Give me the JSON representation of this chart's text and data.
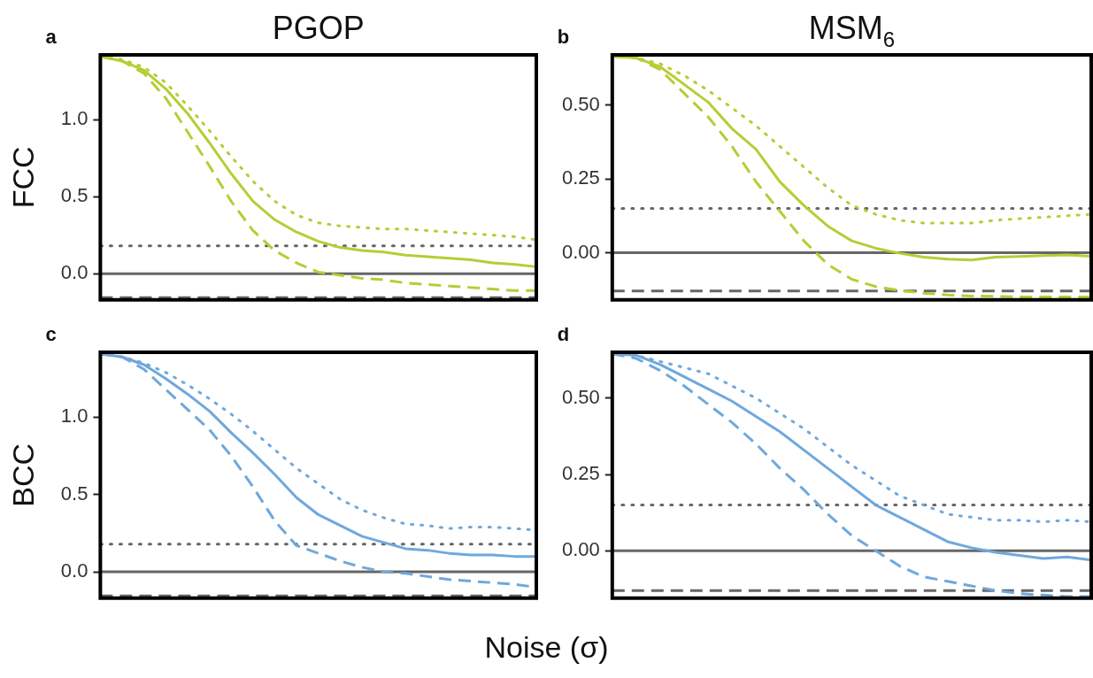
{
  "chart_data": [
    {
      "type": "line",
      "title": "PGOP",
      "ylabel": "FCC",
      "annotations": [
        "a"
      ],
      "tick_labels": "y",
      "legend": false,
      "categories": [
        null,
        null,
        null,
        null,
        null,
        null,
        null,
        null,
        null,
        null,
        null,
        null,
        null,
        null,
        null,
        null,
        null,
        null,
        null,
        null,
        null
      ],
      "ylim": [
        -0.17,
        1.42
      ],
      "yticks": [
        {
          "value": 0,
          "label": "0.0"
        },
        {
          "value": 0.5,
          "label": "0.5"
        },
        {
          "value": 1,
          "label": "1.0"
        }
      ],
      "ref_lines": [
        {
          "axis": "y",
          "value": 0,
          "color": "#666666",
          "line_style": "solid"
        },
        {
          "axis": "y",
          "value": 0.18,
          "color": "#666666",
          "line_style": "dotted"
        },
        {
          "axis": "y",
          "value": -0.155,
          "color": "#666666",
          "line_style": "dashed"
        }
      ],
      "series": [
        {
          "color": "#b8cc35",
          "line_style": "solid",
          "values": [
            1.41,
            1.38,
            1.32,
            1.2,
            1.04,
            0.85,
            0.65,
            0.47,
            0.35,
            0.27,
            0.21,
            0.17,
            0.15,
            0.14,
            0.12,
            0.11,
            0.1,
            0.09,
            0.07,
            0.06,
            0.045
          ]
        },
        {
          "color": "#b8cc35",
          "line_style": "dashed",
          "values": [
            1.41,
            1.38,
            1.3,
            1.14,
            0.92,
            0.7,
            0.47,
            0.28,
            0.15,
            0.07,
            0.01,
            -0.01,
            -0.03,
            -0.04,
            -0.06,
            -0.07,
            -0.08,
            -0.09,
            -0.1,
            -0.11,
            -0.11
          ]
        },
        {
          "color": "#b8cc35",
          "line_style": "dotted",
          "values": [
            1.41,
            1.39,
            1.34,
            1.24,
            1.09,
            0.93,
            0.76,
            0.6,
            0.47,
            0.38,
            0.33,
            0.31,
            0.3,
            0.29,
            0.29,
            0.28,
            0.27,
            0.26,
            0.25,
            0.24,
            0.22
          ]
        }
      ]
    },
    {
      "type": "line",
      "title": "MSM$_{6}$",
      "annotations": [
        "b"
      ],
      "tick_labels": "y",
      "legend": false,
      "categories": [
        null,
        null,
        null,
        null,
        null,
        null,
        null,
        null,
        null,
        null,
        null,
        null,
        null,
        null,
        null,
        null,
        null,
        null,
        null,
        null,
        null
      ],
      "ylim": [
        -0.16,
        0.67
      ],
      "yticks": [
        {
          "value": 0,
          "label": "0.00"
        },
        {
          "value": 0.25,
          "label": "0.25"
        },
        {
          "value": 0.5,
          "label": "0.50"
        }
      ],
      "ref_lines": [
        {
          "axis": "y",
          "value": 0,
          "color": "#666666",
          "line_style": "solid"
        },
        {
          "axis": "y",
          "value": 0.15,
          "color": "#666666",
          "line_style": "dotted"
        },
        {
          "axis": "y",
          "value": -0.13,
          "color": "#666666",
          "line_style": "dashed"
        }
      ],
      "series": [
        {
          "color": "#b8cc35",
          "line_style": "solid",
          "values": [
            0.665,
            0.66,
            0.63,
            0.57,
            0.51,
            0.42,
            0.35,
            0.24,
            0.16,
            0.09,
            0.04,
            0.015,
            -0.002,
            -0.015,
            -0.022,
            -0.025,
            -0.015,
            -0.013,
            -0.01,
            -0.008,
            -0.012
          ]
        },
        {
          "color": "#b8cc35",
          "line_style": "dashed",
          "values": [
            0.665,
            0.66,
            0.62,
            0.54,
            0.46,
            0.36,
            0.24,
            0.14,
            0.04,
            -0.04,
            -0.09,
            -0.115,
            -0.128,
            -0.137,
            -0.143,
            -0.147,
            -0.148,
            -0.15,
            -0.15,
            -0.15,
            -0.15
          ]
        },
        {
          "color": "#b8cc35",
          "line_style": "dotted",
          "values": [
            0.665,
            0.66,
            0.64,
            0.6,
            0.55,
            0.49,
            0.43,
            0.36,
            0.29,
            0.22,
            0.16,
            0.13,
            0.11,
            0.1,
            0.1,
            0.1,
            0.11,
            0.115,
            0.12,
            0.125,
            0.13
          ]
        }
      ]
    },
    {
      "type": "line",
      "ylabel": "BCC",
      "xlabel": "Noise (σ)",
      "annotations": [
        "c"
      ],
      "tick_labels": "y",
      "legend": false,
      "categories": [
        null,
        null,
        null,
        null,
        null,
        null,
        null,
        null,
        null,
        null,
        null,
        null,
        null,
        null,
        null,
        null,
        null,
        null,
        null,
        null,
        null
      ],
      "ylim": [
        -0.17,
        1.42
      ],
      "yticks": [
        {
          "value": 0,
          "label": "0.0"
        },
        {
          "value": 0.5,
          "label": "0.5"
        },
        {
          "value": 1,
          "label": "1.0"
        }
      ],
      "ref_lines": [
        {
          "axis": "y",
          "value": 0,
          "color": "#666666",
          "line_style": "solid"
        },
        {
          "axis": "y",
          "value": 0.18,
          "color": "#666666",
          "line_style": "dotted"
        },
        {
          "axis": "y",
          "value": -0.155,
          "color": "#666666",
          "line_style": "dashed"
        }
      ],
      "series": [
        {
          "color": "#6fa8dc",
          "line_style": "solid",
          "values": [
            1.41,
            1.39,
            1.34,
            1.25,
            1.15,
            1.04,
            0.9,
            0.77,
            0.63,
            0.48,
            0.37,
            0.3,
            0.23,
            0.19,
            0.15,
            0.14,
            0.12,
            0.11,
            0.11,
            0.1,
            0.1
          ]
        },
        {
          "color": "#6fa8dc",
          "line_style": "dashed",
          "values": [
            1.41,
            1.39,
            1.31,
            1.18,
            1.05,
            0.92,
            0.75,
            0.55,
            0.33,
            0.17,
            0.12,
            0.07,
            0.03,
            0.0,
            -0.01,
            -0.03,
            -0.05,
            -0.06,
            -0.07,
            -0.08,
            -0.1
          ]
        },
        {
          "color": "#6fa8dc",
          "line_style": "dotted",
          "values": [
            1.41,
            1.39,
            1.35,
            1.29,
            1.21,
            1.12,
            1.02,
            0.91,
            0.79,
            0.67,
            0.57,
            0.47,
            0.4,
            0.35,
            0.31,
            0.3,
            0.28,
            0.29,
            0.29,
            0.28,
            0.27
          ]
        }
      ]
    },
    {
      "type": "line",
      "annotations": [
        "d"
      ],
      "tick_labels": "y",
      "legend": false,
      "categories": [
        null,
        null,
        null,
        null,
        null,
        null,
        null,
        null,
        null,
        null,
        null,
        null,
        null,
        null,
        null,
        null,
        null,
        null,
        null,
        null,
        null
      ],
      "ylim": [
        -0.155,
        0.65
      ],
      "yticks": [
        {
          "value": 0,
          "label": "0.00"
        },
        {
          "value": 0.25,
          "label": "0.25"
        },
        {
          "value": 0.5,
          "label": "0.50"
        }
      ],
      "ref_lines": [
        {
          "axis": "y",
          "value": 0,
          "color": "#666666",
          "line_style": "solid"
        },
        {
          "axis": "y",
          "value": 0.15,
          "color": "#666666",
          "line_style": "dotted"
        },
        {
          "axis": "y",
          "value": -0.13,
          "color": "#666666",
          "line_style": "dashed"
        }
      ],
      "series": [
        {
          "color": "#6fa8dc",
          "line_style": "solid",
          "values": [
            0.645,
            0.64,
            0.61,
            0.57,
            0.53,
            0.49,
            0.44,
            0.39,
            0.33,
            0.27,
            0.21,
            0.15,
            0.11,
            0.07,
            0.03,
            0.01,
            -0.005,
            -0.015,
            -0.025,
            -0.02,
            -0.03
          ]
        },
        {
          "color": "#6fa8dc",
          "line_style": "dashed",
          "values": [
            0.645,
            0.63,
            0.59,
            0.54,
            0.48,
            0.42,
            0.35,
            0.27,
            0.2,
            0.12,
            0.05,
            0.0,
            -0.05,
            -0.085,
            -0.1,
            -0.115,
            -0.13,
            -0.14,
            -0.145,
            -0.15,
            -0.15
          ]
        },
        {
          "color": "#6fa8dc",
          "line_style": "dotted",
          "values": [
            0.645,
            0.64,
            0.62,
            0.6,
            0.58,
            0.54,
            0.5,
            0.45,
            0.4,
            0.34,
            0.28,
            0.23,
            0.18,
            0.15,
            0.12,
            0.11,
            0.1,
            0.1,
            0.095,
            0.1,
            0.095
          ]
        }
      ]
    }
  ]
}
